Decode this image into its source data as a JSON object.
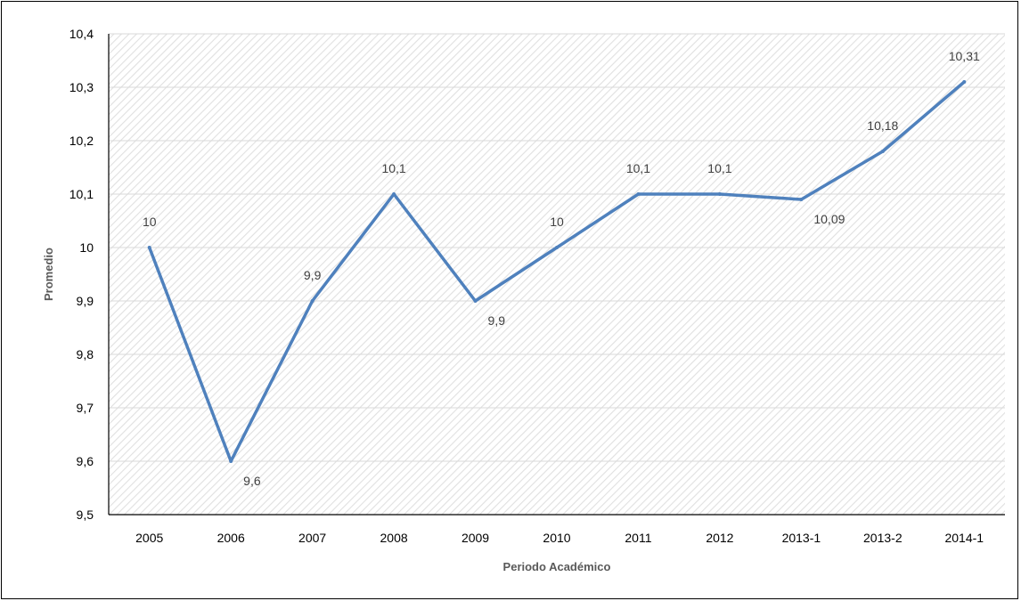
{
  "chart_data": {
    "type": "line",
    "title": "",
    "xlabel": "Periodo Académico",
    "ylabel": "Promedio",
    "categories": [
      "2005",
      "2006",
      "2007",
      "2008",
      "2009",
      "2010",
      "2011",
      "2012",
      "2013-1",
      "2013-2",
      "2014-1"
    ],
    "series": [
      {
        "values": [
          10,
          9.6,
          9.9,
          10.1,
          9.9,
          10,
          10.1,
          10.1,
          10.09,
          10.18,
          10.31
        ],
        "data_labels": [
          "10",
          "9,6",
          "9,9",
          "10,1",
          "9,9",
          "10",
          "10,1",
          "10,1",
          "10,09",
          "10,18",
          "10,31"
        ],
        "color": "#4F81BD"
      }
    ],
    "ylim": [
      9.5,
      10.4
    ],
    "y_ticks": [
      9.5,
      9.6,
      9.7,
      9.8,
      9.9,
      10,
      10.1,
      10.2,
      10.3,
      10.4
    ],
    "y_tick_labels": [
      "9,5",
      "9,6",
      "9,7",
      "9,8",
      "9,9",
      "10",
      "10,1",
      "10,2",
      "10,3",
      "10,4"
    ],
    "grid": true,
    "legend": "none",
    "plot_background": "diagonal hatch",
    "colors": {
      "line": "#4F81BD",
      "grid": "#D9D9D9",
      "hatch": "#E0E0E0",
      "axis": "#000000"
    }
  }
}
